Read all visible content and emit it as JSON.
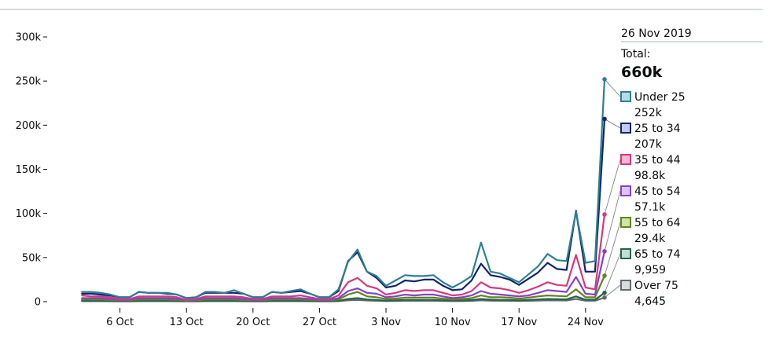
{
  "chart_data": {
    "type": "line",
    "x_start": "2019-09-29",
    "x_end": "2019-11-26",
    "xticks": [
      {
        "label": "6 Oct",
        "date": "2019-10-06"
      },
      {
        "label": "13 Oct",
        "date": "2019-10-13"
      },
      {
        "label": "20 Oct",
        "date": "2019-10-20"
      },
      {
        "label": "27 Oct",
        "date": "2019-10-27"
      },
      {
        "label": "3 Nov",
        "date": "2019-11-03"
      },
      {
        "label": "10 Nov",
        "date": "2019-11-10"
      },
      {
        "label": "17 Nov",
        "date": "2019-11-17"
      },
      {
        "label": "24 Nov",
        "date": "2019-11-24"
      }
    ],
    "yticks": [
      {
        "label": "0",
        "value": 0
      },
      {
        "label": "50k",
        "value": 50000
      },
      {
        "label": "100k",
        "value": 100000
      },
      {
        "label": "150k",
        "value": 150000
      },
      {
        "label": "200k",
        "value": 200000
      },
      {
        "label": "250k",
        "value": 250000
      },
      {
        "label": "300k",
        "value": 300000
      }
    ],
    "ylim": [
      0,
      300000
    ],
    "grid": false,
    "legend_placement": "right",
    "legend_date": "26 Nov 2019",
    "total_label": "Total:",
    "total_value": "660k",
    "series": [
      {
        "name": "Under 25",
        "display_value": "252k",
        "color": "#2e7f91",
        "fill": "#b6dbe3",
        "values": [
          11000,
          11000,
          10000,
          8000,
          5000,
          5000,
          11000,
          10000,
          10000,
          10000,
          8000,
          4000,
          5000,
          11000,
          11000,
          10000,
          13000,
          9000,
          5000,
          5000,
          11000,
          10000,
          12000,
          14000,
          9000,
          5000,
          5000,
          14000,
          45000,
          59000,
          34000,
          29000,
          18000,
          24000,
          30000,
          29000,
          29000,
          30000,
          22000,
          16000,
          22000,
          29000,
          67000,
          34000,
          32000,
          27000,
          22000,
          31000,
          40000,
          54000,
          47000,
          46000,
          102000,
          44000,
          46000,
          252000
        ]
      },
      {
        "name": "25 to 34",
        "display_value": "207k",
        "color": "#12246b",
        "fill": "#c3cbf0",
        "values": [
          9000,
          9000,
          8000,
          7000,
          5000,
          5000,
          11000,
          10000,
          10000,
          9000,
          8000,
          4000,
          5000,
          10000,
          10000,
          10000,
          10000,
          9000,
          5000,
          5000,
          11000,
          10000,
          11000,
          12000,
          9000,
          5000,
          5000,
          12000,
          46000,
          56000,
          34000,
          27000,
          16000,
          18000,
          24000,
          23000,
          25000,
          25000,
          18000,
          13000,
          14000,
          24000,
          43000,
          30000,
          28000,
          25000,
          19000,
          26000,
          33000,
          44000,
          37000,
          36000,
          103000,
          34000,
          34000,
          207000
        ]
      },
      {
        "name": "35 to 44",
        "display_value": "98.8k",
        "color": "#d53880",
        "fill": "#f2b8d3",
        "values": [
          7000,
          6000,
          6000,
          5000,
          3000,
          3000,
          6000,
          6000,
          6000,
          6000,
          5000,
          2000,
          3000,
          6000,
          6000,
          6000,
          6000,
          5000,
          3000,
          3000,
          6000,
          6000,
          6000,
          7000,
          5000,
          3000,
          3000,
          7000,
          22000,
          27000,
          18000,
          15000,
          8000,
          10000,
          13000,
          12000,
          13000,
          13000,
          10000,
          7000,
          8000,
          12000,
          22000,
          16000,
          15000,
          13000,
          10000,
          13000,
          17000,
          22000,
          19000,
          18000,
          53000,
          16000,
          14000,
          98800
        ]
      },
      {
        "name": "45 to 54",
        "display_value": "57.1k",
        "color": "#8542c9",
        "fill": "#dcc6f0",
        "values": [
          4000,
          4000,
          4000,
          3000,
          2000,
          2000,
          4000,
          4000,
          4000,
          4000,
          3000,
          1500,
          2000,
          4000,
          4000,
          4000,
          4000,
          3000,
          2000,
          2000,
          4000,
          4000,
          4000,
          4000,
          3000,
          2000,
          2000,
          4000,
          12000,
          15000,
          10000,
          9000,
          5000,
          6000,
          8000,
          7000,
          8000,
          8000,
          6000,
          4000,
          5000,
          7000,
          12000,
          9000,
          8000,
          7000,
          6000,
          7000,
          10000,
          13000,
          12000,
          11000,
          28000,
          9000,
          8000,
          57100
        ]
      },
      {
        "name": "55 to 64",
        "display_value": "29.4k",
        "color": "#63841e",
        "fill": "#d2e3a6",
        "values": [
          2500,
          2500,
          2500,
          2000,
          1500,
          1500,
          2500,
          2500,
          2500,
          2500,
          2000,
          1000,
          1500,
          2500,
          2500,
          2500,
          2500,
          2000,
          1500,
          1500,
          2500,
          2500,
          2500,
          2500,
          2000,
          1500,
          1500,
          2500,
          8000,
          11000,
          6000,
          5000,
          3000,
          3500,
          4500,
          4500,
          4500,
          4500,
          3500,
          2500,
          3000,
          4000,
          7000,
          5000,
          5000,
          4500,
          3500,
          4500,
          6000,
          7000,
          6500,
          6000,
          14000,
          5000,
          5000,
          29400
        ]
      },
      {
        "name": "65 to 74",
        "display_value": "9,959",
        "color": "#28624a",
        "fill": "#bfe0cf",
        "values": [
          1000,
          1000,
          1000,
          900,
          700,
          700,
          1000,
          1000,
          1000,
          1000,
          900,
          500,
          700,
          1000,
          1000,
          1000,
          1000,
          900,
          700,
          700,
          1000,
          1000,
          1000,
          1000,
          900,
          700,
          700,
          1000,
          3000,
          4000,
          2500,
          2000,
          1200,
          1500,
          2000,
          2000,
          2000,
          2000,
          1500,
          1200,
          1300,
          1800,
          3000,
          2200,
          2000,
          1900,
          1500,
          1900,
          2500,
          3000,
          2800,
          2600,
          6000,
          2200,
          2200,
          9959
        ]
      },
      {
        "name": "Over 75",
        "display_value": "4,645",
        "color": "#626a6e",
        "fill": "#d9dcdd",
        "values": [
          500,
          500,
          500,
          450,
          350,
          350,
          500,
          500,
          500,
          500,
          450,
          250,
          350,
          500,
          500,
          500,
          500,
          450,
          350,
          350,
          500,
          500,
          500,
          500,
          450,
          350,
          350,
          500,
          1500,
          2000,
          1300,
          1000,
          600,
          800,
          1000,
          1000,
          1000,
          1000,
          800,
          600,
          650,
          900,
          1500,
          1100,
          1000,
          950,
          750,
          950,
          1200,
          1500,
          1400,
          1300,
          3000,
          1100,
          1100,
          4645
        ]
      }
    ]
  }
}
